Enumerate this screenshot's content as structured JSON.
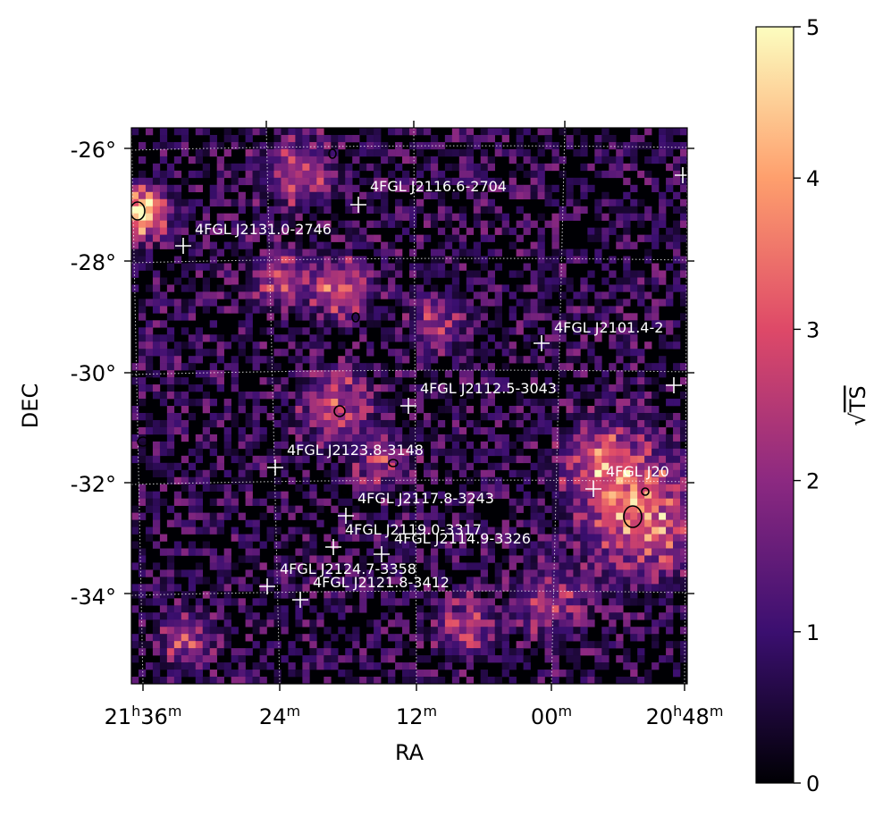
{
  "chart_data": {
    "type": "heatmap",
    "xlabel": "RA",
    "ylabel": "DEC",
    "x_ticks": [
      {
        "label": "21",
        "unit": "h",
        "sub": "36",
        "subunit": "m"
      },
      {
        "label": "24",
        "unit": "",
        "sub": "",
        "subunit": "m"
      },
      {
        "label": "12",
        "unit": "",
        "sub": "",
        "subunit": "m"
      },
      {
        "label": "00",
        "unit": "",
        "sub": "",
        "subunit": "m"
      },
      {
        "label": "20",
        "unit": "h",
        "sub": "48",
        "subunit": "m"
      }
    ],
    "y_ticks": [
      "-26°",
      "-28°",
      "-30°",
      "-32°",
      "-34°"
    ],
    "colorbar": {
      "label": "TS",
      "label_prefix": "√",
      "colormap": "magma",
      "ticks": [
        "0",
        "1",
        "2",
        "3",
        "4",
        "5"
      ],
      "range": [
        0,
        5
      ],
      "colors": [
        "#000004",
        "#3b0f70",
        "#8c2981",
        "#de4968",
        "#fe9f6d",
        "#fcfdbf"
      ]
    },
    "grid": true,
    "sources": [
      {
        "name": "4FGL J2116.6-2704"
      },
      {
        "name": "4FGL J2131.0-2746"
      },
      {
        "name": "4FGL J2101.4-2"
      },
      {
        "name": "4FGL J2112.5-3043"
      },
      {
        "name": "4FGL J2123.8-3148"
      },
      {
        "name": "4FGL J20"
      },
      {
        "name": "4FGL J2117.8-3243"
      },
      {
        "name": "4FGL J2119.0-3317"
      },
      {
        "name": "4FGL J2114.9-3326"
      },
      {
        "name": "4FGL J2124.7-3358"
      },
      {
        "name": "4FGL J2121.8-3412"
      }
    ]
  }
}
